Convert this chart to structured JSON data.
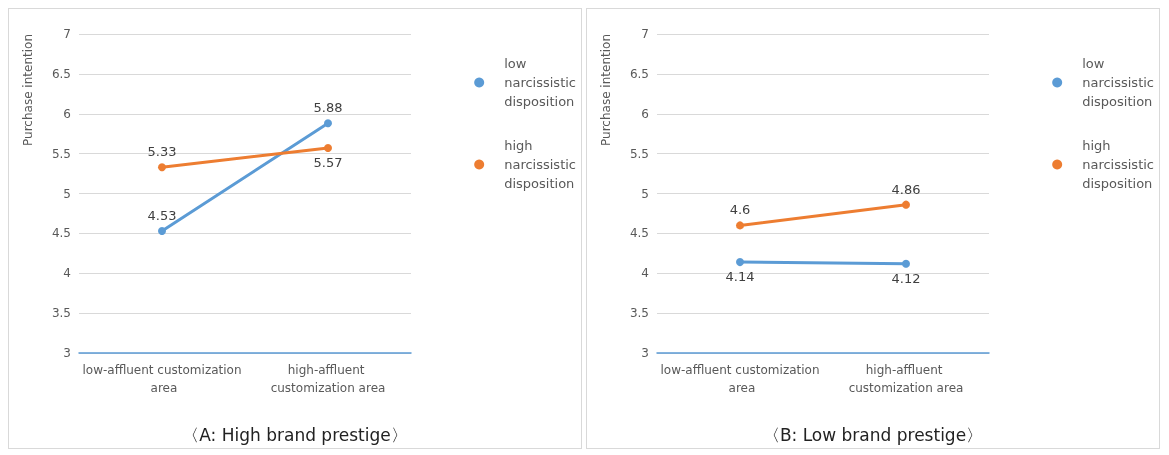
{
  "chart_data": [
    {
      "type": "line",
      "title": "〈A: High brand prestige〉",
      "ylabel": "Purchase intention",
      "categories": [
        "low-affluent customization area",
        "high-affluent customization area"
      ],
      "series": [
        {
          "name": "low narcissistic disposition",
          "color": "#5b9bd5",
          "values": [
            4.53,
            5.88
          ]
        },
        {
          "name": "high narcissistic disposition",
          "color": "#ed7d31",
          "values": [
            5.33,
            5.57
          ]
        }
      ],
      "ylim": [
        3,
        7
      ],
      "yticks": [
        3,
        3.5,
        4,
        4.5,
        5,
        5.5,
        6,
        6.5,
        7
      ],
      "grid": "y",
      "legend": "right",
      "marker": "circle",
      "data_labels": true
    },
    {
      "type": "line",
      "title": "〈B: Low brand prestige〉",
      "ylabel": "Purchase intention",
      "categories": [
        "low-affluent customization area",
        "high-affluent customization area"
      ],
      "series": [
        {
          "name": "low narcissistic disposition",
          "color": "#5b9bd5",
          "values": [
            4.14,
            4.12
          ]
        },
        {
          "name": "high narcissistic disposition",
          "color": "#ed7d31",
          "values": [
            4.6,
            4.86
          ]
        }
      ],
      "ylim": [
        3,
        7
      ],
      "yticks": [
        3,
        3.5,
        4,
        4.5,
        5,
        5.5,
        6,
        6.5,
        7
      ],
      "grid": "y",
      "legend": "right",
      "marker": "circle",
      "data_labels": true
    }
  ]
}
